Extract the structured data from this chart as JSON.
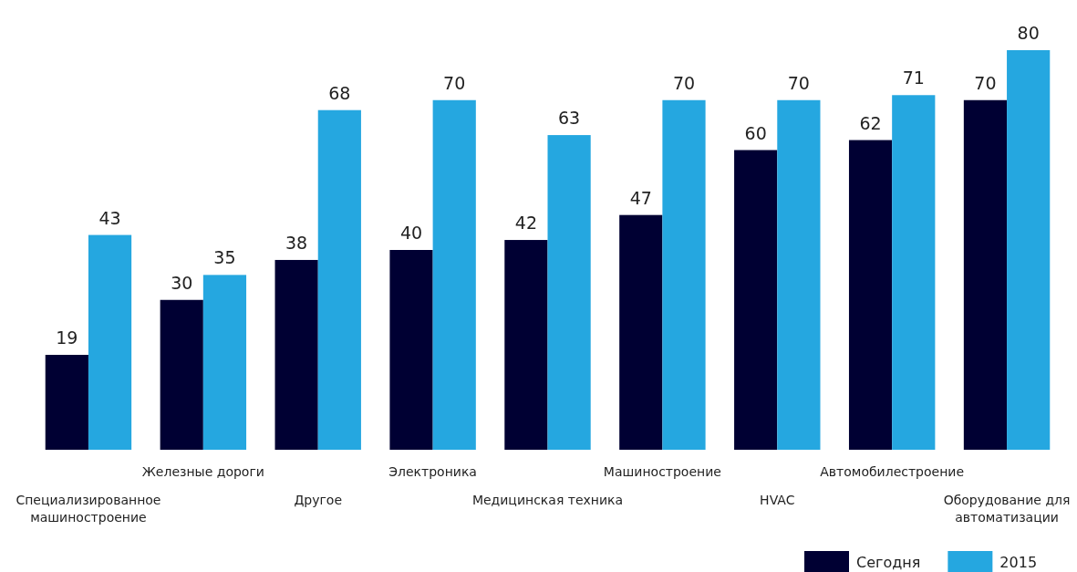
{
  "chart_data": {
    "type": "bar",
    "categories": [
      "Специализированное машиностроение",
      "Железные дороги",
      "Другое",
      "Электроника",
      "Медицинская техника",
      "Машиностроение",
      "HVAC",
      "Автомобилестроение",
      "Оборудование для автоматизации"
    ],
    "series": [
      {
        "name": "Сегодня",
        "color": "#000033",
        "values": [
          19,
          30,
          38,
          40,
          42,
          47,
          60,
          62,
          70
        ]
      },
      {
        "name": "2015",
        "color": "#25a7e0",
        "values": [
          43,
          35,
          68,
          70,
          63,
          70,
          70,
          71,
          80
        ]
      }
    ],
    "data_labels": true,
    "legend": "bottom right"
  }
}
